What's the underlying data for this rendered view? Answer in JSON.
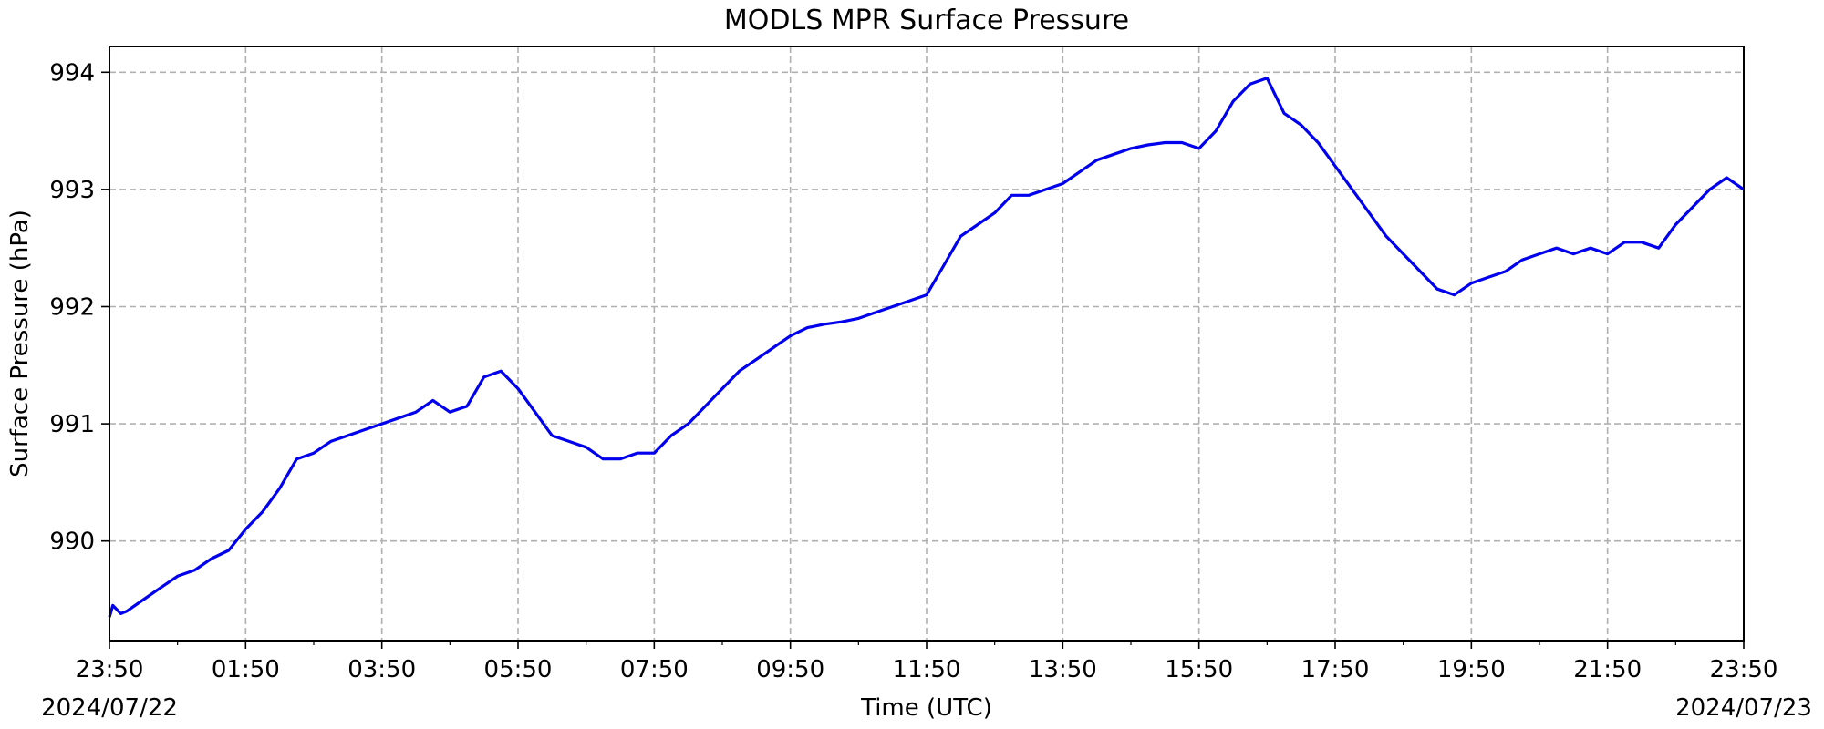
{
  "chart_data": {
    "type": "line",
    "title": "MODLS MPR Surface Pressure",
    "xlabel": "Time (UTC)",
    "ylabel": "Surface Pressure (hPa)",
    "x_start_label": "2024/07/22",
    "x_end_label": "2024/07/23",
    "x_tick_labels": [
      "23:50",
      "01:50",
      "03:50",
      "05:50",
      "07:50",
      "09:50",
      "11:50",
      "13:50",
      "15:50",
      "17:50",
      "19:50",
      "21:50",
      "23:50"
    ],
    "y_ticks": [
      990,
      991,
      992,
      993,
      994
    ],
    "ylim": [
      989.15,
      994.22
    ],
    "xlim": [
      "2024-07-22 23:50",
      "2024-07-23 23:50"
    ],
    "grid": true,
    "line_color": "#0000ee",
    "series": [
      {
        "x": [
          "2024-07-22 23:50",
          "2024-07-22 23:53",
          "2024-07-23 00:00",
          "2024-07-23 00:05",
          "2024-07-23 00:20",
          "2024-07-23 00:35",
          "2024-07-23 00:50",
          "2024-07-23 01:05",
          "2024-07-23 01:20",
          "2024-07-23 01:35",
          "2024-07-23 01:50",
          "2024-07-23 02:05",
          "2024-07-23 02:20",
          "2024-07-23 02:35",
          "2024-07-23 02:50",
          "2024-07-23 03:05",
          "2024-07-23 03:20",
          "2024-07-23 03:35",
          "2024-07-23 03:50",
          "2024-07-23 04:05",
          "2024-07-23 04:20",
          "2024-07-23 04:35",
          "2024-07-23 04:50",
          "2024-07-23 05:05",
          "2024-07-23 05:20",
          "2024-07-23 05:35",
          "2024-07-23 05:50",
          "2024-07-23 06:05",
          "2024-07-23 06:20",
          "2024-07-23 06:35",
          "2024-07-23 06:50",
          "2024-07-23 07:05",
          "2024-07-23 07:20",
          "2024-07-23 07:35",
          "2024-07-23 07:50",
          "2024-07-23 08:05",
          "2024-07-23 08:20",
          "2024-07-23 08:35",
          "2024-07-23 08:50",
          "2024-07-23 09:05",
          "2024-07-23 09:20",
          "2024-07-23 09:35",
          "2024-07-23 09:50",
          "2024-07-23 10:05",
          "2024-07-23 10:20",
          "2024-07-23 10:35",
          "2024-07-23 10:50",
          "2024-07-23 11:05",
          "2024-07-23 11:20",
          "2024-07-23 11:35",
          "2024-07-23 11:50",
          "2024-07-23 12:05",
          "2024-07-23 12:20",
          "2024-07-23 12:35",
          "2024-07-23 12:50",
          "2024-07-23 13:05",
          "2024-07-23 13:20",
          "2024-07-23 13:35",
          "2024-07-23 13:50",
          "2024-07-23 14:05",
          "2024-07-23 14:20",
          "2024-07-23 14:35",
          "2024-07-23 14:50",
          "2024-07-23 15:05",
          "2024-07-23 15:20",
          "2024-07-23 15:35",
          "2024-07-23 15:50",
          "2024-07-23 16:05",
          "2024-07-23 16:20",
          "2024-07-23 16:35",
          "2024-07-23 16:50",
          "2024-07-23 17:05",
          "2024-07-23 17:20",
          "2024-07-23 17:35",
          "2024-07-23 17:50",
          "2024-07-23 18:05",
          "2024-07-23 18:20",
          "2024-07-23 18:35",
          "2024-07-23 18:50",
          "2024-07-23 19:05",
          "2024-07-23 19:20",
          "2024-07-23 19:35",
          "2024-07-23 19:50",
          "2024-07-23 20:05",
          "2024-07-23 20:20",
          "2024-07-23 20:35",
          "2024-07-23 20:50",
          "2024-07-23 21:05",
          "2024-07-23 21:20",
          "2024-07-23 21:35",
          "2024-07-23 21:50",
          "2024-07-23 22:05",
          "2024-07-23 22:20",
          "2024-07-23 22:35",
          "2024-07-23 22:50",
          "2024-07-23 23:05",
          "2024-07-23 23:20",
          "2024-07-23 23:35",
          "2024-07-23 23:50"
        ],
        "y": [
          989.35,
          989.45,
          989.38,
          989.4,
          989.5,
          989.6,
          989.7,
          989.75,
          989.85,
          989.92,
          990.1,
          990.25,
          990.45,
          990.7,
          990.75,
          990.85,
          990.9,
          990.95,
          991.0,
          991.05,
          991.1,
          991.2,
          991.1,
          991.15,
          991.4,
          991.45,
          991.3,
          991.1,
          990.9,
          990.85,
          990.8,
          990.7,
          990.7,
          990.75,
          990.75,
          990.9,
          991.0,
          991.15,
          991.3,
          991.45,
          991.55,
          991.65,
          991.75,
          991.82,
          991.85,
          991.87,
          991.9,
          991.95,
          992.0,
          992.05,
          992.1,
          992.35,
          992.6,
          992.7,
          992.8,
          992.95,
          992.95,
          993.0,
          993.05,
          993.15,
          993.25,
          993.3,
          993.35,
          993.38,
          993.4,
          993.4,
          993.35,
          993.5,
          993.75,
          993.9,
          993.95,
          993.65,
          993.55,
          993.4,
          993.2,
          993.0,
          992.8,
          992.6,
          992.45,
          992.3,
          992.15,
          992.1,
          992.2,
          992.25,
          992.3,
          992.4,
          992.45,
          992.5,
          992.45,
          992.5,
          992.45,
          992.55,
          992.55,
          992.5,
          992.7,
          992.85,
          993.0,
          993.1,
          993.0
        ]
      }
    ]
  }
}
